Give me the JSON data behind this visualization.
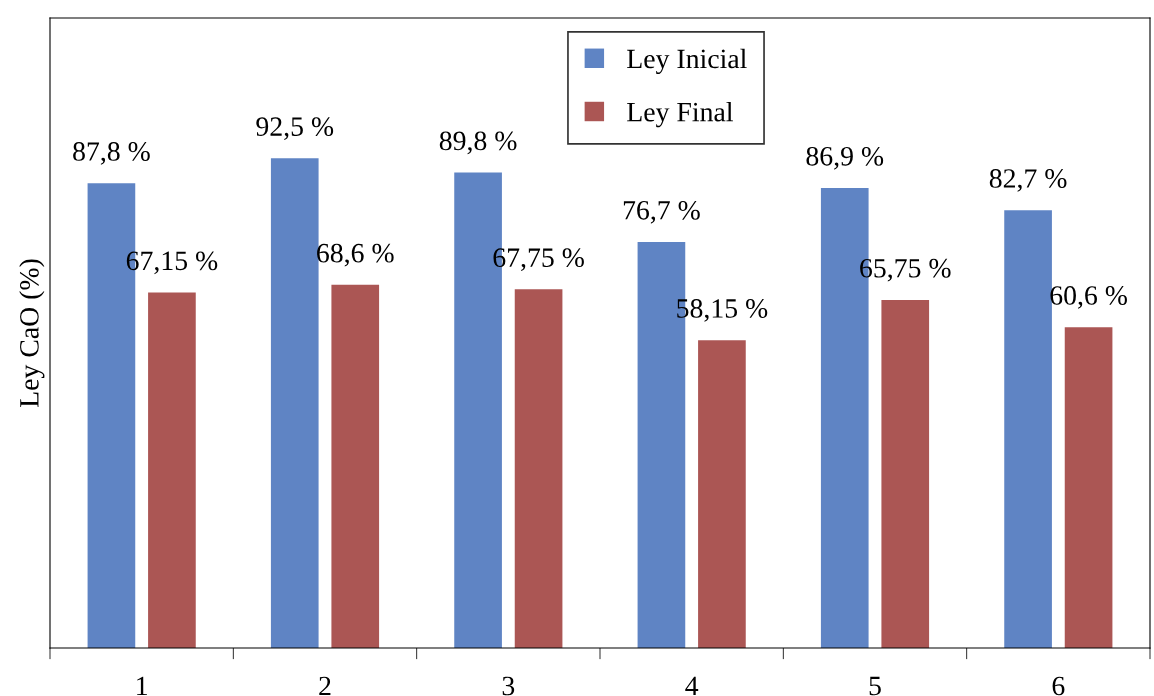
{
  "chart_data": {
    "type": "bar",
    "ylabel": "Ley CaO (%)",
    "categories": [
      "1",
      "2",
      "3",
      "4",
      "5",
      "6"
    ],
    "ylim": [
      0,
      119
    ],
    "series": [
      {
        "name": "Ley Inicial",
        "color": "#5f84c4",
        "values": [
          87.8,
          92.5,
          89.8,
          76.7,
          86.9,
          82.7
        ],
        "value_labels": [
          "87,8 %",
          "92,5 %",
          "89,8 %",
          "76,7 %",
          "86,9 %",
          "82,7 %"
        ]
      },
      {
        "name": "Ley Final",
        "color": "#ab5654",
        "values": [
          67.15,
          68.6,
          67.75,
          58.15,
          65.75,
          60.6
        ],
        "value_labels": [
          "67,15 %",
          "68,6 %",
          "67,75 %",
          "58,15 %",
          "65,75 %",
          "60,6 %"
        ]
      }
    ],
    "legend": "top",
    "grid": false,
    "tick_labels": "x"
  }
}
